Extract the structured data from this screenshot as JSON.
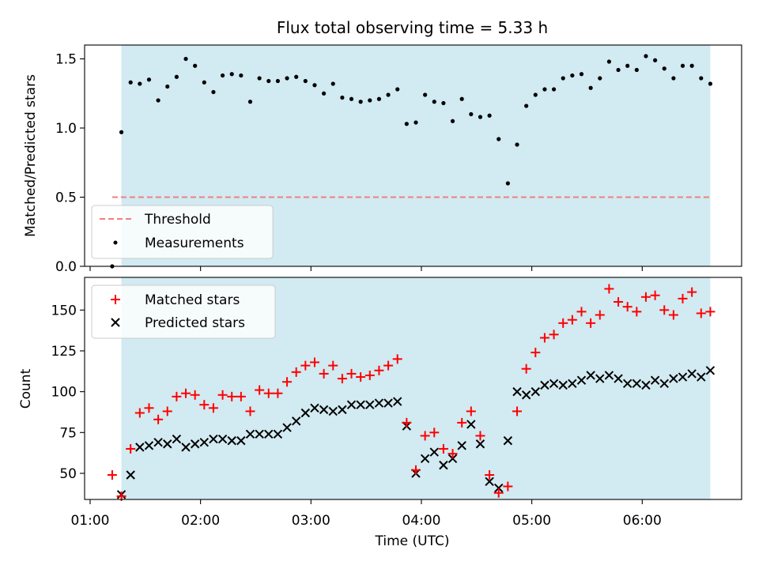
{
  "chart_data": [
    {
      "type": "scatter",
      "title": "Flux total observing time = 5.33 h",
      "xlabel": "",
      "ylabel": "Matched/Predicted stars",
      "xlim": [
        "00:57",
        "06:54"
      ],
      "ylim": [
        0,
        1.6
      ],
      "yticks": [
        0.0,
        0.5,
        1.0,
        1.5
      ],
      "ytick_labels": [
        "0.0",
        "0.5",
        "1.0",
        "1.5"
      ],
      "grid": false,
      "legend_position": "lower-left",
      "shaded_span": [
        "01:17",
        "06:37"
      ],
      "colors": {
        "shade": "#add8e6",
        "threshold": "#f08080",
        "measurements": "#000000"
      },
      "threshold": {
        "name": "Threshold",
        "value": 0.5,
        "x": [
          "01:12",
          "06:37"
        ]
      },
      "series": [
        {
          "name": "Measurements",
          "x": [
            "01:12",
            "01:17",
            "01:22",
            "01:27",
            "01:32",
            "01:37",
            "01:42",
            "01:47",
            "01:52",
            "01:57",
            "02:02",
            "02:07",
            "02:12",
            "02:17",
            "02:22",
            "02:27",
            "02:32",
            "02:37",
            "02:42",
            "02:47",
            "02:52",
            "02:57",
            "03:02",
            "03:07",
            "03:12",
            "03:17",
            "03:22",
            "03:27",
            "03:32",
            "03:37",
            "03:42",
            "03:47",
            "03:52",
            "03:57",
            "04:02",
            "04:07",
            "04:12",
            "04:17",
            "04:22",
            "04:27",
            "04:32",
            "04:37",
            "04:42",
            "04:47",
            "04:52",
            "04:57",
            "05:02",
            "05:07",
            "05:12",
            "05:17",
            "05:22",
            "05:27",
            "05:32",
            "05:37",
            "05:42",
            "05:47",
            "05:52",
            "05:57",
            "06:02",
            "06:07",
            "06:12",
            "06:17",
            "06:22",
            "06:27",
            "06:32",
            "06:37"
          ],
          "y": [
            0.0,
            0.97,
            1.33,
            1.32,
            1.35,
            1.2,
            1.3,
            1.37,
            1.5,
            1.45,
            1.33,
            1.26,
            1.38,
            1.39,
            1.38,
            1.19,
            1.36,
            1.34,
            1.34,
            1.36,
            1.37,
            1.34,
            1.31,
            1.25,
            1.32,
            1.22,
            1.21,
            1.19,
            1.2,
            1.21,
            1.24,
            1.28,
            1.03,
            1.04,
            1.24,
            1.19,
            1.18,
            1.05,
            1.21,
            1.1,
            1.08,
            1.09,
            0.92,
            0.6,
            0.88,
            1.16,
            1.24,
            1.28,
            1.28,
            1.36,
            1.38,
            1.39,
            1.29,
            1.36,
            1.48,
            1.42,
            1.45,
            1.42,
            1.52,
            1.49,
            1.43,
            1.36,
            1.45,
            1.45,
            1.36,
            1.32
          ]
        }
      ]
    },
    {
      "type": "scatter",
      "title": "",
      "xlabel": "Time (UTC)",
      "ylabel": "Count",
      "xlim": [
        "00:57",
        "06:54"
      ],
      "ylim": [
        34,
        170
      ],
      "xticks": [
        "01:00",
        "02:00",
        "03:00",
        "04:00",
        "05:00",
        "06:00"
      ],
      "yticks": [
        50,
        75,
        100,
        125,
        150
      ],
      "grid": false,
      "legend_position": "upper-left",
      "shaded_span": [
        "01:17",
        "06:37"
      ],
      "colors": {
        "shade": "#add8e6",
        "matched": "#ff0000",
        "predicted": "#000000"
      },
      "x": [
        "01:12",
        "01:17",
        "01:22",
        "01:27",
        "01:32",
        "01:37",
        "01:42",
        "01:47",
        "01:52",
        "01:57",
        "02:02",
        "02:07",
        "02:12",
        "02:17",
        "02:22",
        "02:27",
        "02:32",
        "02:37",
        "02:42",
        "02:47",
        "02:52",
        "02:57",
        "03:02",
        "03:07",
        "03:12",
        "03:17",
        "03:22",
        "03:27",
        "03:32",
        "03:37",
        "03:42",
        "03:47",
        "03:52",
        "03:57",
        "04:02",
        "04:07",
        "04:12",
        "04:17",
        "04:22",
        "04:27",
        "04:32",
        "04:37",
        "04:42",
        "04:47",
        "04:52",
        "04:57",
        "05:02",
        "05:07",
        "05:12",
        "05:17",
        "05:22",
        "05:27",
        "05:32",
        "05:37",
        "05:42",
        "05:47",
        "05:52",
        "05:57",
        "06:02",
        "06:07",
        "06:12",
        "06:17",
        "06:22",
        "06:27",
        "06:32",
        "06:37"
      ],
      "series": [
        {
          "name": "Matched stars",
          "marker": "plus",
          "values": [
            49,
            36,
            65,
            87,
            90,
            83,
            88,
            97,
            99,
            98,
            92,
            90,
            98,
            97,
            97,
            88,
            101,
            99,
            99,
            106,
            112,
            116,
            118,
            111,
            116,
            108,
            111,
            109,
            110,
            113,
            116,
            120,
            81,
            52,
            73,
            75,
            65,
            62,
            81,
            88,
            73,
            49,
            38,
            42,
            88,
            114,
            124,
            133,
            135,
            142,
            144,
            149,
            142,
            147,
            163,
            155,
            152,
            149,
            158,
            159,
            150,
            147,
            157,
            161,
            148,
            149
          ]
        },
        {
          "name": "Predicted stars",
          "marker": "x",
          "values": [
            null,
            37,
            49,
            66,
            67,
            69,
            68,
            71,
            66,
            68,
            69,
            71,
            71,
            70,
            70,
            74,
            74,
            74,
            74,
            78,
            82,
            87,
            90,
            89,
            88,
            89,
            92,
            92,
            92,
            93,
            93,
            94,
            79,
            50,
            59,
            63,
            55,
            59,
            67,
            80,
            68,
            45,
            41,
            70,
            100,
            98,
            100,
            104,
            105,
            104,
            105,
            107,
            110,
            108,
            110,
            108,
            105,
            105,
            104,
            107,
            105,
            108,
            109,
            111,
            109,
            113
          ]
        }
      ]
    }
  ]
}
